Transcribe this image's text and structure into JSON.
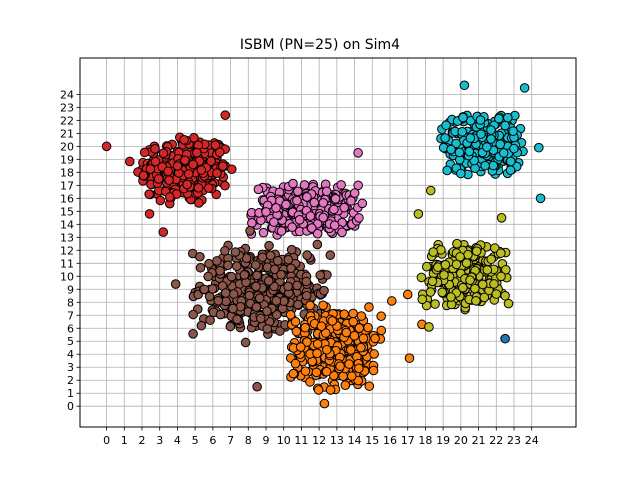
{
  "chart_data": {
    "type": "scatter",
    "title": "ISBM (PN=25) on Sim4",
    "xlabel": "",
    "ylabel": "",
    "xlim": [
      -1.5,
      26.5
    ],
    "ylim": [
      -1.6,
      26.8
    ],
    "xticks": [
      0,
      1,
      2,
      3,
      4,
      5,
      6,
      7,
      8,
      9,
      10,
      11,
      12,
      13,
      14,
      15,
      16,
      17,
      18,
      19,
      20,
      21,
      22,
      23,
      24
    ],
    "yticks": [
      0,
      1,
      2,
      3,
      4,
      5,
      6,
      7,
      8,
      9,
      10,
      11,
      12,
      13,
      14,
      15,
      16,
      17,
      18,
      19,
      20,
      21,
      22,
      23,
      24
    ],
    "grid": true,
    "legend": "none",
    "marker_edge_color": "#000000",
    "clusters": [
      {
        "color": "#d62728",
        "center": [
          4.4,
          18.2
        ],
        "spread": [
          1.7,
          1.8
        ],
        "count": 300
      },
      {
        "color": "#e377c2",
        "center": [
          11.3,
          15.1
        ],
        "spread": [
          2.0,
          1.3
        ],
        "count": 280
      },
      {
        "color": "#8c564b",
        "center": [
          8.8,
          8.9
        ],
        "spread": [
          2.5,
          2.3
        ],
        "count": 380
      },
      {
        "color": "#ff7f0e",
        "center": [
          13.0,
          4.5
        ],
        "spread": [
          1.7,
          2.1
        ],
        "count": 330
      },
      {
        "color": "#bcbd22",
        "center": [
          20.2,
          10.1
        ],
        "spread": [
          1.6,
          1.7
        ],
        "count": 260
      },
      {
        "color": "#17becf",
        "center": [
          21.2,
          20.2
        ],
        "spread": [
          1.5,
          1.6
        ],
        "count": 280
      }
    ],
    "points": [
      {
        "x": 0,
        "y": 20,
        "color": "#d62728"
      },
      {
        "x": 3.2,
        "y": 13.4,
        "color": "#d62728"
      },
      {
        "x": 6.7,
        "y": 22.4,
        "color": "#d62728"
      },
      {
        "x": 14.2,
        "y": 19.5,
        "color": "#e377c2"
      },
      {
        "x": 8.1,
        "y": 13.5,
        "color": "#8c564b"
      },
      {
        "x": 3.9,
        "y": 9.4,
        "color": "#8c564b"
      },
      {
        "x": 8.5,
        "y": 1.5,
        "color": "#8c564b"
      },
      {
        "x": 17.1,
        "y": 3.7,
        "color": "#ff7f0e"
      },
      {
        "x": 17.0,
        "y": 8.6,
        "color": "#ff7f0e"
      },
      {
        "x": 16.1,
        "y": 8.1,
        "color": "#ff7f0e"
      },
      {
        "x": 17.8,
        "y": 6.3,
        "color": "#ff7f0e"
      },
      {
        "x": 12.3,
        "y": 0.2,
        "color": "#ff7f0e"
      },
      {
        "x": 18.2,
        "y": 6.1,
        "color": "#bcbd22"
      },
      {
        "x": 18.3,
        "y": 16.6,
        "color": "#bcbd22"
      },
      {
        "x": 17.6,
        "y": 14.8,
        "color": "#bcbd22"
      },
      {
        "x": 22.5,
        "y": 8.5,
        "color": "#bcbd22"
      },
      {
        "x": 22.3,
        "y": 14.5,
        "color": "#bcbd22"
      },
      {
        "x": 22.5,
        "y": 5.2,
        "color": "#1f77b4"
      },
      {
        "x": 20.2,
        "y": 24.7,
        "color": "#17becf"
      },
      {
        "x": 24.4,
        "y": 19.9,
        "color": "#17becf"
      },
      {
        "x": 24.5,
        "y": 16.0,
        "color": "#17becf"
      },
      {
        "x": 23.6,
        "y": 24.5,
        "color": "#17becf"
      }
    ]
  }
}
